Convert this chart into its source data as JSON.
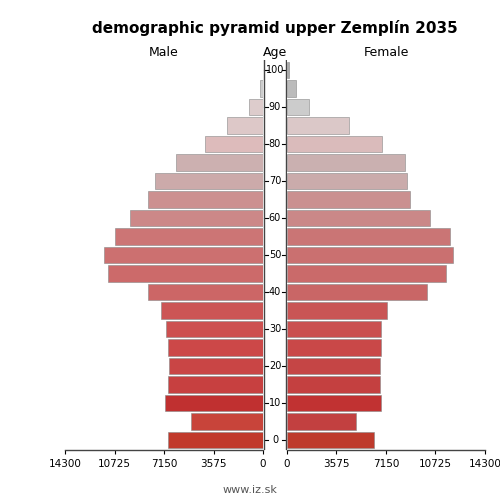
{
  "title": "demographic pyramid upper Zemplín 2035",
  "xlabel_left": "Male",
  "xlabel_right": "Female",
  "xlabel_center": "Age",
  "footer": "www.iz.sk",
  "age_groups": [
    0,
    5,
    10,
    15,
    20,
    25,
    30,
    35,
    40,
    45,
    50,
    55,
    60,
    65,
    70,
    75,
    80,
    85,
    90,
    95,
    100
  ],
  "male": [
    6900,
    5200,
    7100,
    6900,
    6800,
    6900,
    7000,
    7400,
    8300,
    11200,
    11500,
    10700,
    9600,
    8300,
    7800,
    6300,
    4200,
    2600,
    1000,
    250,
    40
  ],
  "female": [
    6300,
    5000,
    6800,
    6700,
    6700,
    6800,
    6800,
    7200,
    10100,
    11500,
    12000,
    11800,
    10300,
    8900,
    8700,
    8500,
    6900,
    4500,
    1600,
    650,
    180
  ],
  "xlim": 14300,
  "xticks": [
    0,
    3575,
    7150,
    10725,
    14300
  ],
  "bar_height": 0.9,
  "bg_color": "#ffffff",
  "spine_color": "#444444",
  "text_color": "#000000",
  "age_colors": {
    "0": [
      "#c1392b",
      "#be3a2c"
    ],
    "5": [
      "#c8443a",
      "#c24040"
    ],
    "10": [
      "#c03030",
      "#c13232"
    ],
    "15": [
      "#c74040",
      "#c44040"
    ],
    "20": [
      "#c94545",
      "#c54545"
    ],
    "25": [
      "#cc4848",
      "#c94848"
    ],
    "30": [
      "#cd5050",
      "#ca5050"
    ],
    "35": [
      "#cc5555",
      "#c95555"
    ],
    "40": [
      "#cc6666",
      "#c96666"
    ],
    "45": [
      "#cc6a6a",
      "#ca6a6a"
    ],
    "50": [
      "#cc7070",
      "#ca7070"
    ],
    "55": [
      "#cc7575",
      "#ca7575"
    ],
    "60": [
      "#cc8888",
      "#ca8888"
    ],
    "65": [
      "#cc9090",
      "#ca9090"
    ],
    "70": [
      "#ccaaaa",
      "#caabab"
    ],
    "75": [
      "#ccb0b0",
      "#cab0b0"
    ],
    "80": [
      "#ddbbbb",
      "#dabbbb"
    ],
    "85": [
      "#ddc8c8",
      "#dbc8c8"
    ],
    "90": [
      "#ddcccc",
      "#cccccc"
    ],
    "95": [
      "#cccccc",
      "#bbbbbb"
    ],
    "100": [
      "#cccccc",
      "#aaaaaa"
    ]
  }
}
